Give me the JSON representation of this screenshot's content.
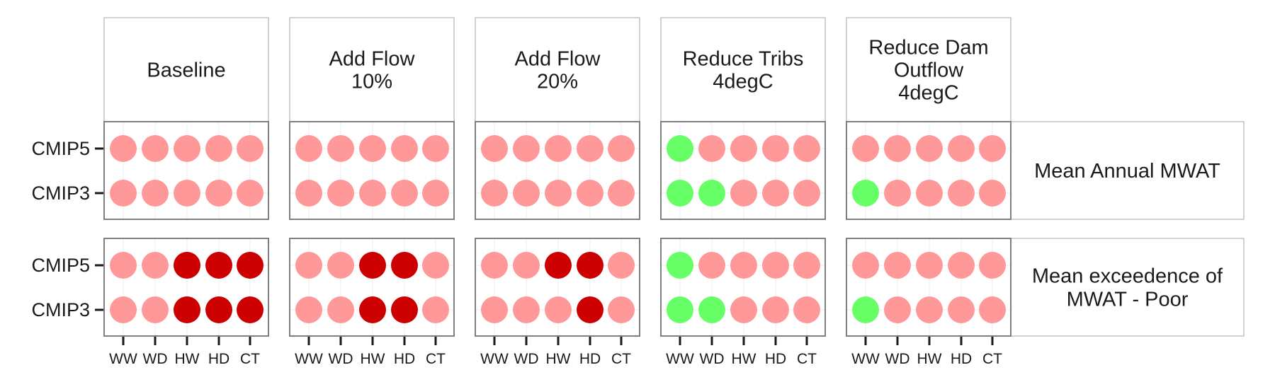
{
  "chart_data": {
    "type": "scatter",
    "columns": [
      {
        "label": [
          "Baseline"
        ]
      },
      {
        "label": [
          "Add Flow",
          "10%"
        ]
      },
      {
        "label": [
          "Add Flow",
          "20%"
        ]
      },
      {
        "label": [
          "Reduce Tribs",
          "4degC"
        ]
      },
      {
        "label": [
          "Reduce Dam",
          "Outflow",
          "4degC"
        ]
      }
    ],
    "rows": [
      {
        "label": [
          "Mean Annual MWAT"
        ]
      },
      {
        "label": [
          "Mean exceedence of",
          "MWAT - Poor"
        ]
      }
    ],
    "x_categories": [
      "WW",
      "WD",
      "HW",
      "HD",
      "CT"
    ],
    "y_categories": [
      "CMIP5",
      "CMIP3"
    ],
    "colors": {
      "low": "#ff9999",
      "high": "#cc0000",
      "good": "#66ff66"
    },
    "cells": [
      [
        [
          [
            "low",
            "low",
            "low",
            "low",
            "low"
          ],
          [
            "low",
            "low",
            "low",
            "low",
            "low"
          ]
        ],
        [
          [
            "low",
            "low",
            "low",
            "low",
            "low"
          ],
          [
            "low",
            "low",
            "low",
            "low",
            "low"
          ]
        ],
        [
          [
            "low",
            "low",
            "low",
            "low",
            "low"
          ],
          [
            "low",
            "low",
            "low",
            "low",
            "low"
          ]
        ],
        [
          [
            "good",
            "low",
            "low",
            "low",
            "low"
          ],
          [
            "good",
            "good",
            "low",
            "low",
            "low"
          ]
        ],
        [
          [
            "low",
            "low",
            "low",
            "low",
            "low"
          ],
          [
            "good",
            "low",
            "low",
            "low",
            "low"
          ]
        ]
      ],
      [
        [
          [
            "low",
            "low",
            "high",
            "high",
            "high"
          ],
          [
            "low",
            "low",
            "high",
            "high",
            "high"
          ]
        ],
        [
          [
            "low",
            "low",
            "high",
            "high",
            "low"
          ],
          [
            "low",
            "low",
            "high",
            "high",
            "low"
          ]
        ],
        [
          [
            "low",
            "low",
            "high",
            "high",
            "low"
          ],
          [
            "low",
            "low",
            "low",
            "high",
            "low"
          ]
        ],
        [
          [
            "good",
            "low",
            "low",
            "low",
            "low"
          ],
          [
            "good",
            "good",
            "low",
            "low",
            "low"
          ]
        ],
        [
          [
            "low",
            "low",
            "low",
            "low",
            "low"
          ],
          [
            "good",
            "low",
            "low",
            "low",
            "low"
          ]
        ]
      ]
    ]
  }
}
